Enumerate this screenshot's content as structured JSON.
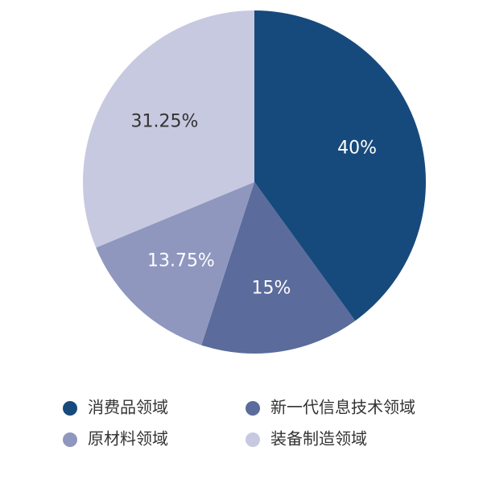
{
  "chart_data": {
    "type": "pie",
    "categories": [
      "消费品领域",
      "新一代信息技术领域",
      "原材料领域",
      "装备制造领域"
    ],
    "values": [
      40,
      15,
      13.75,
      31.25
    ],
    "value_labels": [
      "40%",
      "15%",
      "13.75%",
      "31.25%"
    ],
    "colors": [
      "#174a7c",
      "#5b6b9b",
      "#8f97bf",
      "#c7c9e0"
    ],
    "legend": "bottom"
  }
}
